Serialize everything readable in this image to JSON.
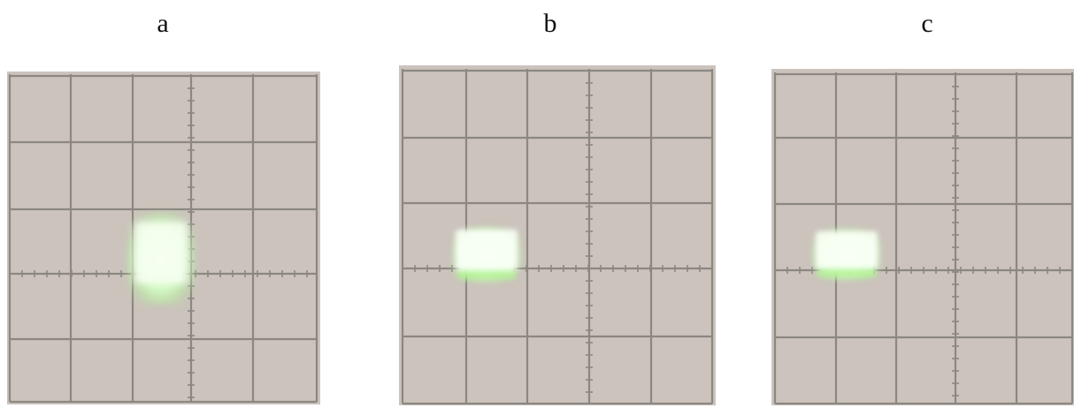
{
  "panels": [
    {
      "id": "a",
      "label": "a",
      "spot_color": "#d9ffd0"
    },
    {
      "id": "b",
      "label": "b",
      "spot_color": "#e8ffe0"
    },
    {
      "id": "c",
      "label": "c",
      "spot_color": "#e8ffe0"
    }
  ],
  "colors": {
    "screen": "#cbc3bc",
    "screen_edge": "#b9b1aa",
    "grid_line": "#8c8782",
    "phosphor_glow": "#9cf27a"
  }
}
